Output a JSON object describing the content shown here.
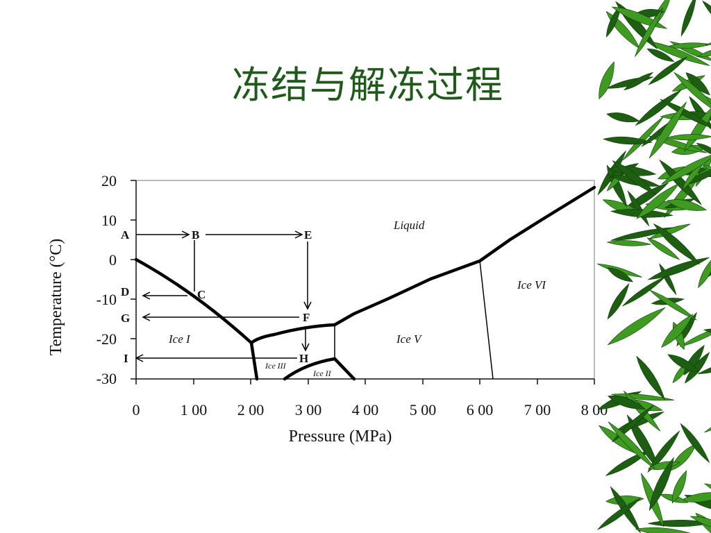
{
  "title": "冻结与解冻过程",
  "diagram": {
    "x_axis": {
      "title": "Pressure (MPa)",
      "ticks": [
        "0",
        "1 00",
        "2 00",
        "3 00",
        "4 00",
        "5 00",
        "6 00",
        "7 00",
        "8 00"
      ]
    },
    "y_axis": {
      "title": "Temperature (°C)",
      "ticks": [
        "20",
        "10",
        "0",
        "-10",
        "-20",
        "-30"
      ]
    },
    "regions": {
      "liquid": "Liquid",
      "ice1": "Ice I",
      "ice3": "Ice III",
      "ice2": "Ice II",
      "ice5": "Ice V",
      "ice6": "Ice VI"
    },
    "points": {
      "a": "A",
      "b": "B",
      "c": "C",
      "d": "D",
      "e": "E",
      "f": "F",
      "g": "G",
      "h": "H",
      "i": "I"
    }
  },
  "decoration": {
    "bamboo": "bamboo-leaves-border"
  },
  "colors": {
    "title": "#1f5a1a",
    "leaf_dark": "#1d5e12",
    "leaf_light": "#3f9a22"
  }
}
